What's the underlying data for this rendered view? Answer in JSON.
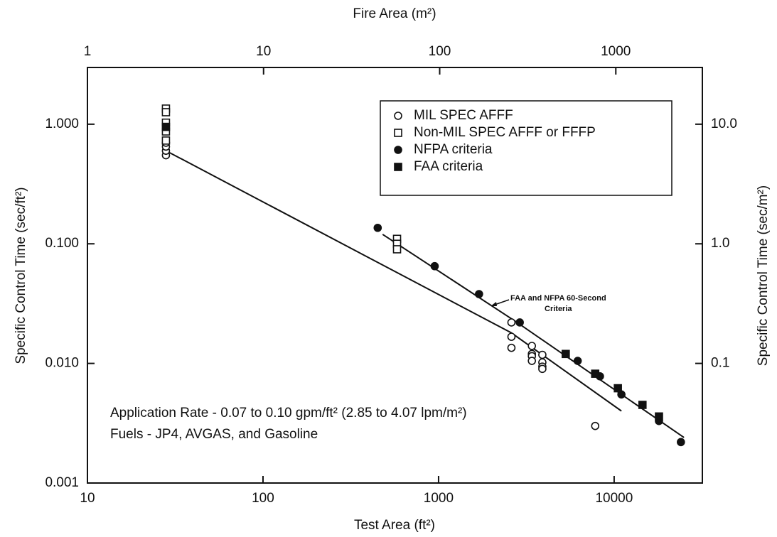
{
  "chart_data": {
    "type": "scatter",
    "xlabel": "Test Area (ft²)",
    "x2label": "Fire Area (m²)",
    "ylabel": "Specific Control Time (sec/ft²)",
    "y2label": "Specific Control Time (sec/m²)",
    "log_x": true,
    "log_y": true,
    "xlim": [
      10,
      31800
    ],
    "xticks": [
      10,
      100,
      1000,
      10000
    ],
    "x2lim": [
      1,
      3100
    ],
    "x2ticks": [
      1,
      10,
      100,
      1000
    ],
    "ylim": [
      0.001,
      2.98
    ],
    "yticks": [
      {
        "value": 1,
        "label": "1.000"
      },
      {
        "value": 0.1,
        "label": "0.100"
      },
      {
        "value": 0.01,
        "label": "0.010"
      },
      {
        "value": 0.001,
        "label": "0.001"
      }
    ],
    "y2lim": [
      0.01,
      29.8
    ],
    "y2ticks": [
      {
        "value": 10,
        "label": "10.0"
      },
      {
        "value": 1,
        "label": "1.0"
      },
      {
        "value": 0.1,
        "label": "0.1"
      }
    ],
    "legend_position": "upper right",
    "series": [
      {
        "name": "MIL SPEC AFFF",
        "color": "#111",
        "marker": "circle-open",
        "x": [
          28,
          28,
          28,
          28,
          2600,
          2600,
          2600,
          3400,
          3400,
          3400,
          3400,
          3900,
          3900,
          3900,
          3900,
          7800
        ],
        "values": [
          0.55,
          0.6,
          0.65,
          0.7,
          0.022,
          0.0167,
          0.0135,
          0.014,
          0.012,
          0.0115,
          0.0105,
          0.0118,
          0.0102,
          0.0094,
          0.009,
          0.003
        ]
      },
      {
        "name": "Non-MIL SPEC AFFF or FFFP",
        "color": "#111",
        "marker": "square-open",
        "x": [
          28,
          28,
          28,
          28,
          28,
          580,
          580,
          580
        ],
        "values": [
          1.35,
          1.26,
          1.03,
          0.87,
          0.73,
          0.11,
          0.1,
          0.09
        ]
      },
      {
        "name": "NFPA criteria",
        "color": "#111",
        "marker": "circle-filled",
        "x": [
          450,
          950,
          1700,
          2900,
          6200,
          8300,
          11000,
          18000,
          24000
        ],
        "values": [
          0.136,
          0.065,
          0.038,
          0.022,
          0.0105,
          0.0078,
          0.0055,
          0.0033,
          0.0022
        ]
      },
      {
        "name": "FAA criteria",
        "color": "#111",
        "marker": "square-filled",
        "x": [
          28,
          5300,
          7800,
          10500,
          14500,
          18000
        ],
        "values": [
          0.95,
          0.012,
          0.0082,
          0.0062,
          0.0045,
          0.0036
        ]
      }
    ],
    "lines": [
      {
        "color": "#111",
        "x": [
          28,
          2600,
          11000
        ],
        "values": [
          0.6,
          0.018,
          0.004
        ]
      },
      {
        "color": "#111",
        "x": [
          480,
          2800,
          25000
        ],
        "values": [
          0.12,
          0.022,
          0.0024
        ]
      }
    ],
    "annotations": [
      "FAA and NFPA 60-Second",
      "Criteria",
      "Application Rate - 0.07 to 0.10 gpm/ft² (2.85 to 4.07 lpm/m²)",
      "Fuels - JP4, AVGAS, and Gasoline"
    ]
  }
}
